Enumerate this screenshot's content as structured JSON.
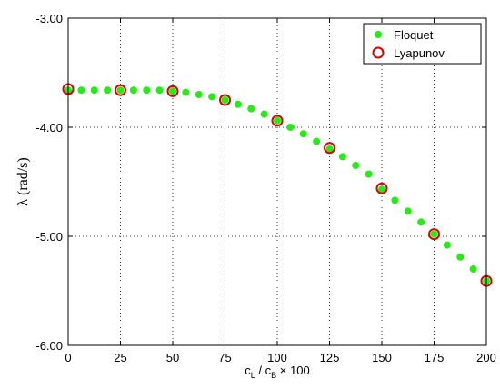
{
  "chart_data": {
    "type": "scatter",
    "xlabel": {
      "c": "c",
      "sub_l": "L",
      "slash": " / c",
      "sub_b": "B",
      "suffix": " × 100"
    },
    "ylabel": "λ (rad/s)",
    "xlim": [
      0,
      200
    ],
    "ylim": [
      -6.0,
      -3.0
    ],
    "xticks": [
      "0",
      "25",
      "50",
      "75",
      "100",
      "125",
      "150",
      "175",
      "200"
    ],
    "xtick_values": [
      0,
      25,
      50,
      75,
      100,
      125,
      150,
      175,
      200
    ],
    "yticks": [
      "-3.00",
      "-4.00",
      "-5.00",
      "-6.00"
    ],
    "ytick_values": [
      -3.0,
      -4.0,
      -5.0,
      -6.0
    ],
    "grid": true,
    "legend_position": "top-right",
    "series": [
      {
        "name": "Floquet",
        "marker": "filled-dot",
        "color": "#22ee11",
        "x": [
          0,
          6.25,
          12.5,
          18.75,
          25,
          31.25,
          37.5,
          43.75,
          50,
          56.25,
          62.5,
          68.75,
          75,
          81.25,
          87.5,
          93.75,
          100,
          106.25,
          112.5,
          118.75,
          125,
          131.25,
          137.5,
          143.75,
          150,
          156.25,
          162.5,
          168.75,
          175,
          181.25,
          187.5,
          193.75,
          200
        ],
        "y": [
          -3.66,
          -3.66,
          -3.66,
          -3.66,
          -3.66,
          -3.66,
          -3.66,
          -3.66,
          -3.67,
          -3.68,
          -3.7,
          -3.72,
          -3.75,
          -3.79,
          -3.83,
          -3.88,
          -3.94,
          -4.0,
          -4.06,
          -4.13,
          -4.2,
          -4.27,
          -4.35,
          -4.43,
          -4.57,
          -4.67,
          -4.77,
          -4.87,
          -4.98,
          -5.08,
          -5.19,
          -5.3,
          -5.41
        ]
      },
      {
        "name": "Lyapunov",
        "marker": "open-circle",
        "color": "#dd0000",
        "x": [
          0,
          25,
          50,
          75,
          100,
          125,
          150,
          175,
          200
        ],
        "y": [
          -3.65,
          -3.66,
          -3.67,
          -3.75,
          -3.94,
          -4.19,
          -4.56,
          -4.98,
          -5.41
        ]
      }
    ]
  }
}
